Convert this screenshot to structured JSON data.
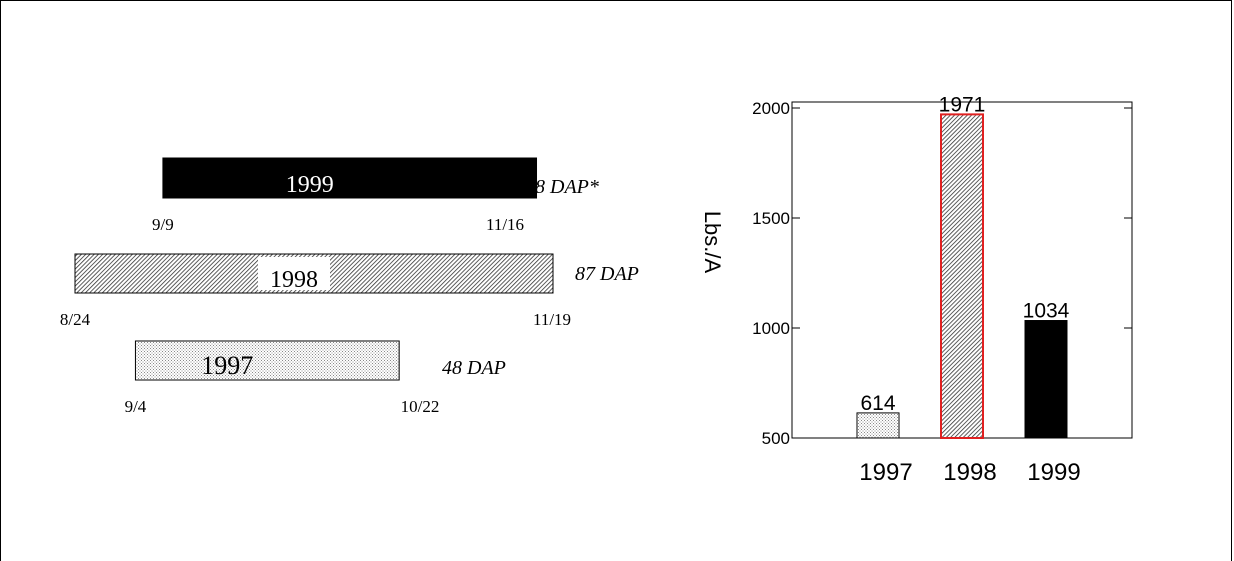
{
  "chart_data": [
    {
      "type": "timeline",
      "bars": [
        {
          "year": "1999",
          "start": "9/9",
          "end": "11/16",
          "duration": "68 DAP*",
          "fill": "solid",
          "color": "#000000"
        },
        {
          "year": "1998",
          "start": "8/24",
          "end": "11/19",
          "duration": "87 DAP",
          "fill": "dense-hatch",
          "color": "#555555"
        },
        {
          "year": "1997",
          "start": "9/4",
          "end": "10/22",
          "duration": "48 DAP",
          "fill": "light-stipple",
          "color": "#cccccc"
        }
      ]
    },
    {
      "type": "bar",
      "categories": [
        "1997",
        "1998",
        "1999"
      ],
      "values": [
        614,
        1971,
        1034
      ],
      "data_labels": [
        "614",
        "1971",
        "1034"
      ],
      "fills": [
        "light-stipple",
        "dense-hatch",
        "solid"
      ],
      "highlight": {
        "category": "1998",
        "outline": "#e02020"
      },
      "ylabel": "Lbs./A",
      "ylim": [
        500,
        2000
      ],
      "yticks": [
        500,
        1000,
        1500,
        2000
      ],
      "ytick_labels": [
        "500",
        "1000",
        "1500",
        "2000"
      ],
      "grid": false
    }
  ]
}
